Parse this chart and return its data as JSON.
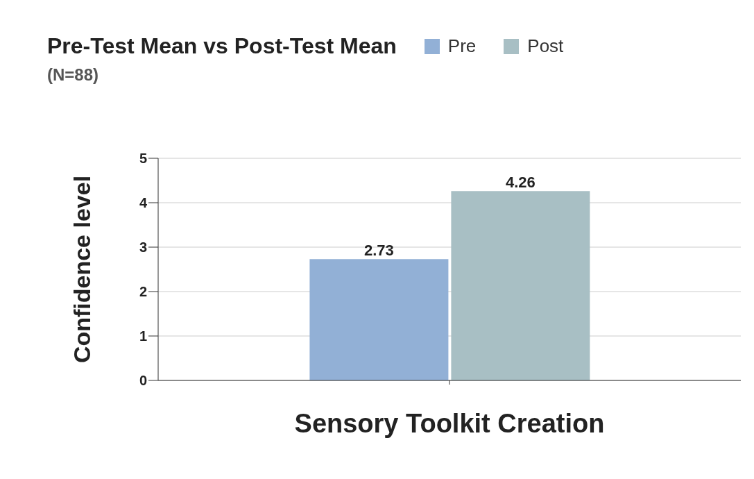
{
  "chart_data": {
    "type": "bar",
    "title": "Pre-Test Mean vs Post-Test Mean",
    "subtitle": "(N=88)",
    "ylabel": "Confidence level",
    "categories": [
      "Sensory Toolkit Creation"
    ],
    "series": [
      {
        "name": "Pre",
        "color": "#92b0d6",
        "values": [
          2.73
        ]
      },
      {
        "name": "Post",
        "color": "#a8bfc4",
        "values": [
          4.26
        ]
      }
    ],
    "ylim": [
      0,
      5
    ],
    "yticks": [
      0,
      1,
      2,
      3,
      4,
      5
    ],
    "grid": "y",
    "legend": "top right",
    "data_labels": true
  }
}
